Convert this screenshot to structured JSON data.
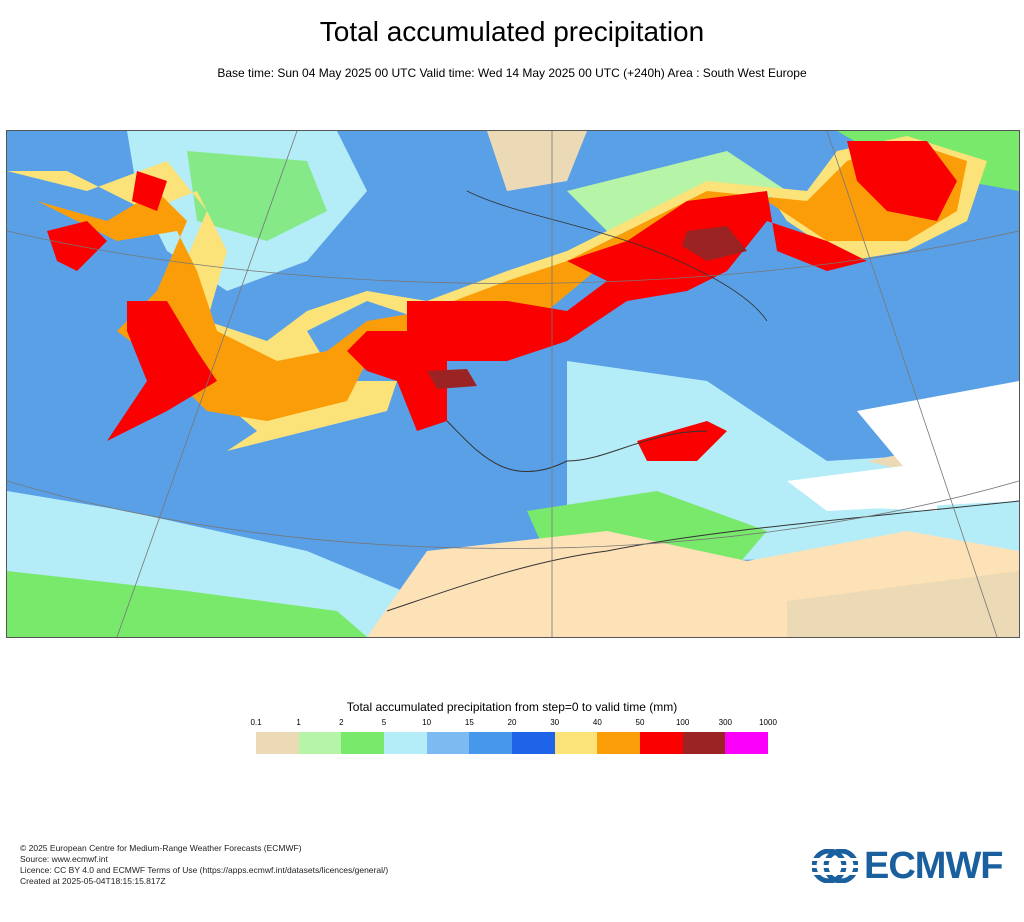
{
  "header": {
    "title": "Total accumulated precipitation",
    "subtitle": "Base time: Sun 04 May 2025 00 UTC Valid time: Wed 14 May 2025 00 UTC (+240h) Area : South West Europe"
  },
  "legend": {
    "title": "Total accumulated precipitation from step=0 to valid time (mm)",
    "ticks": [
      "0.1",
      "1",
      "2",
      "5",
      "10",
      "15",
      "20",
      "30",
      "40",
      "50",
      "100",
      "300",
      "1000"
    ],
    "colors": [
      "#ecd9b6",
      "#b6f5a7",
      "#79e96b",
      "#b4ecf8",
      "#7ebaf2",
      "#4798ed",
      "#1f64e8",
      "#fbe37a",
      "#fb9d09",
      "#fb0000",
      "#9c2323",
      "#fb01f9"
    ]
  },
  "map": {
    "land_color": "#fde1b7",
    "sea_color": "#5aa0e6"
  },
  "footer": {
    "lines": [
      "© 2025 European Centre for Medium-Range Weather Forecasts (ECMWF)",
      "Source: www.ecmwf.int",
      "Licence: CC BY 4.0 and ECMWF Terms of Use (https://apps.ecmwf.int/datasets/licences/general/)",
      "Created at 2025-05-04T18:15:15.817Z"
    ]
  },
  "logo": {
    "text": "ECMWF",
    "color": "#1a5f9e"
  }
}
